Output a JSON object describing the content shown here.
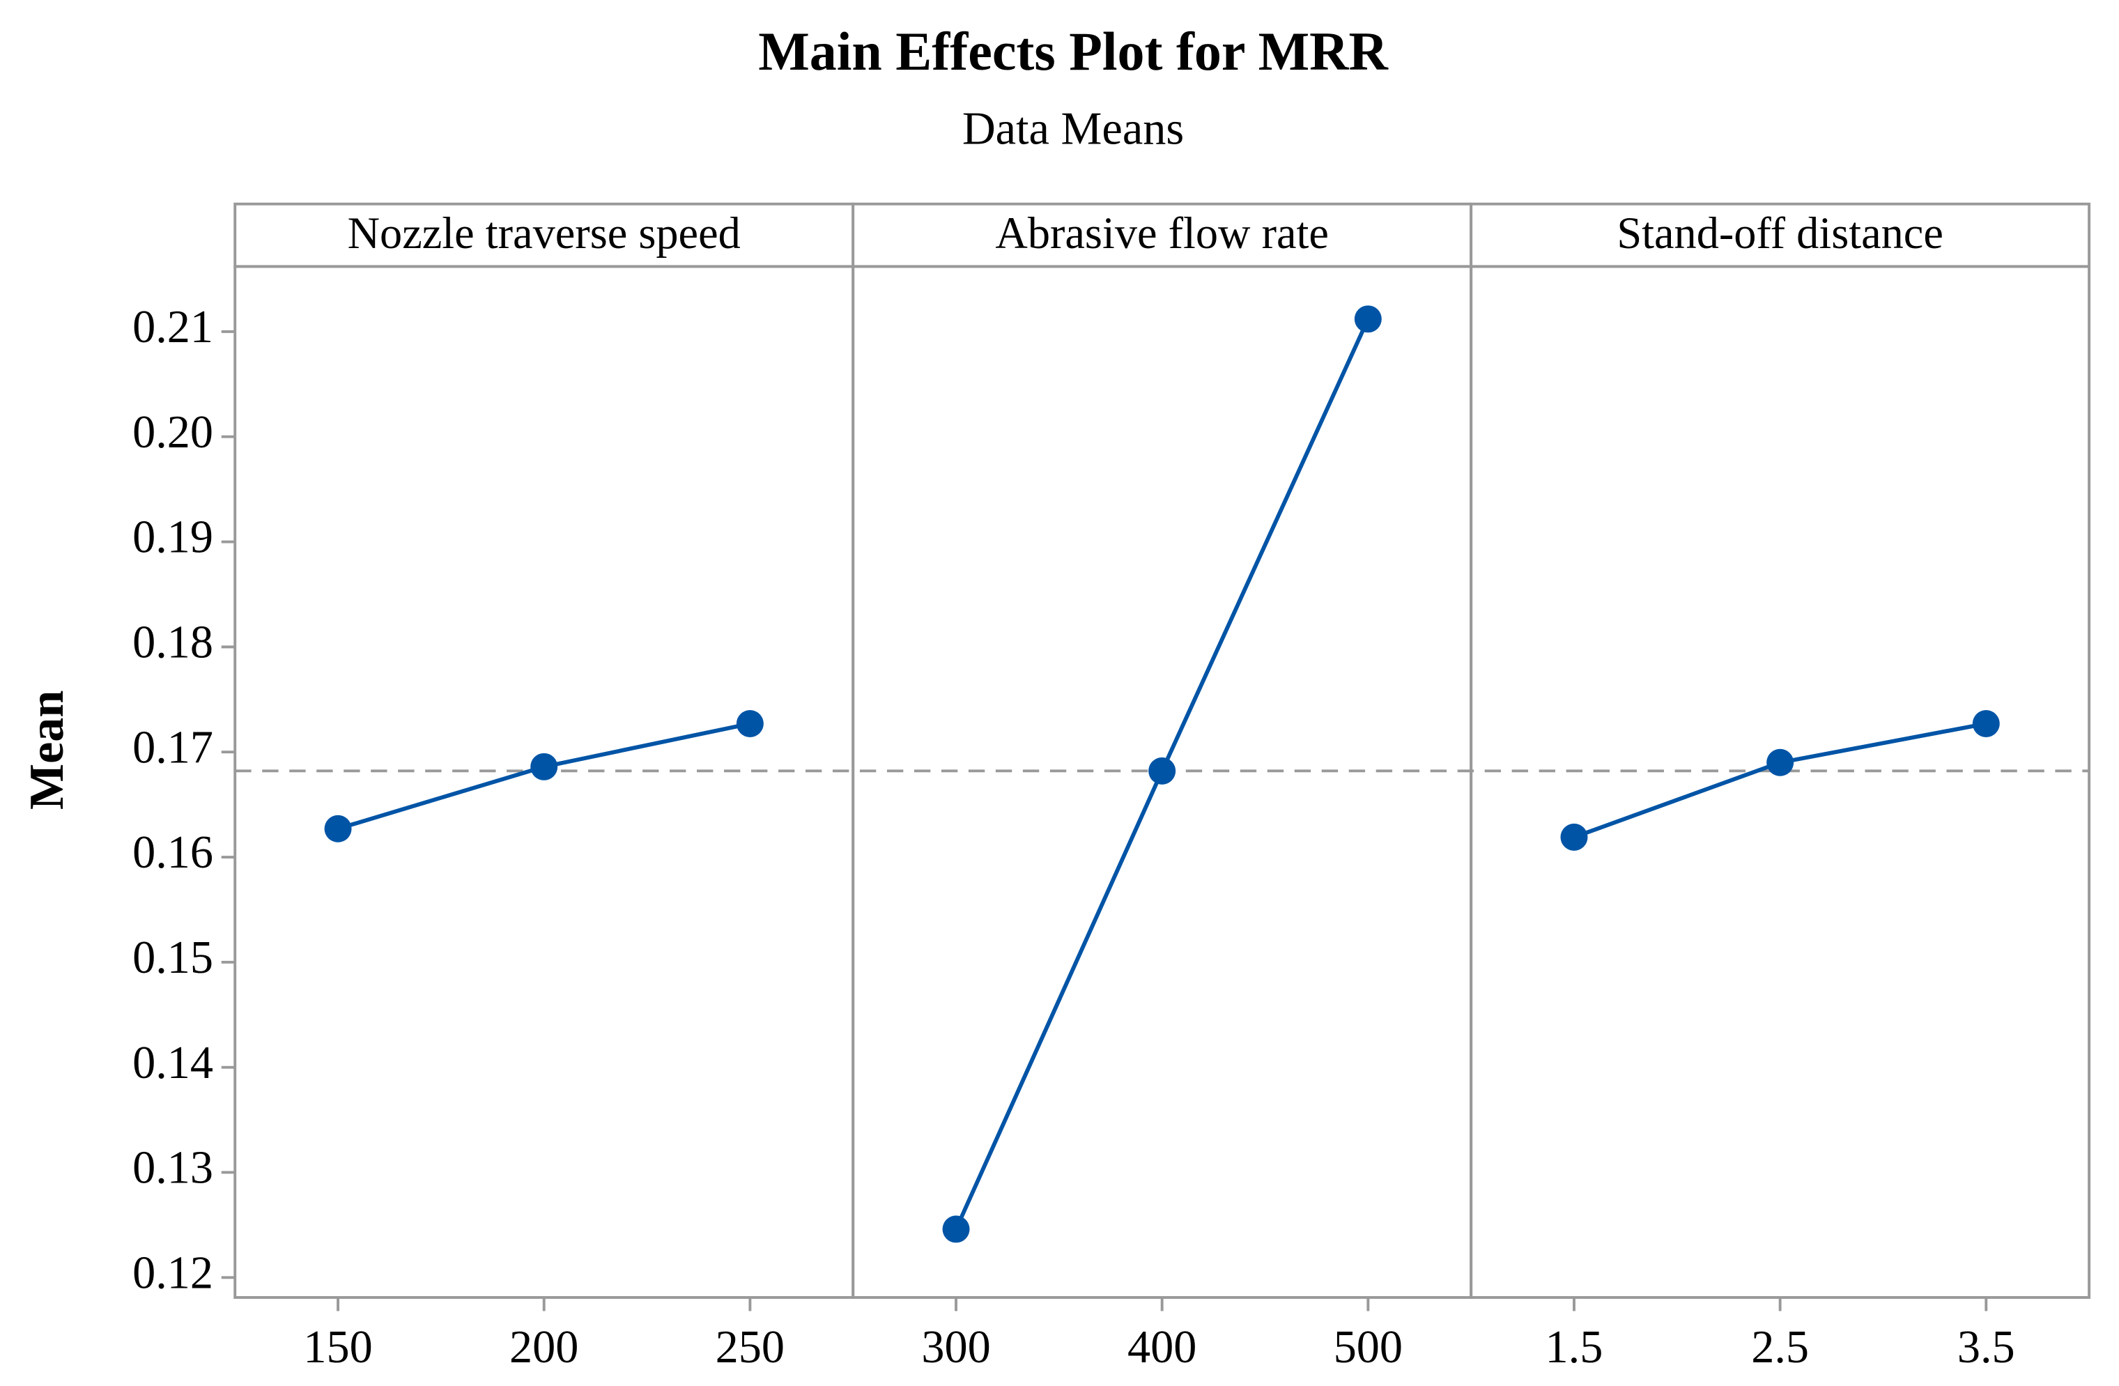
{
  "chart_data": {
    "type": "line",
    "title": "Main Effects Plot for MRR",
    "subtitle": "Data Means",
    "ylabel": "Mean",
    "color": "#0054a6",
    "mean": 0.1682,
    "ylim": [
      0.1181,
      0.2162
    ],
    "yticks": [
      0.12,
      0.13,
      0.14,
      0.15,
      0.16,
      0.17,
      0.18,
      0.19,
      {
        "value": 0.2,
        "label": "0.20"
      },
      0.21
    ],
    "panels": [
      {
        "title": "Nozzle traverse speed",
        "categories": [
          "150",
          "200",
          "250"
        ],
        "values": [
          0.1627,
          0.1686,
          0.1727
        ]
      },
      {
        "title": "Abrasive flow rate",
        "categories": [
          "300",
          "400",
          "500"
        ],
        "values": [
          0.1246,
          0.1682,
          0.2112
        ]
      },
      {
        "title": "Stand-off distance",
        "categories": [
          "1.5",
          "2.5",
          "3.5"
        ],
        "values": [
          0.1619,
          0.169,
          0.1727
        ]
      }
    ]
  }
}
